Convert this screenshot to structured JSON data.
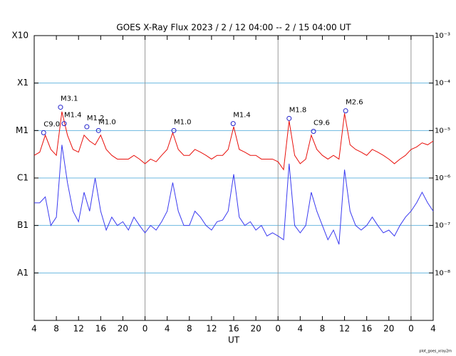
{
  "chart_data": {
    "type": "line",
    "title": "GOES X-Ray Flux   2023 /  2 / 12   04:00 --  2 / 15   04:00   UT",
    "xlabel": "UT",
    "footer": "plot_goes_xray2m",
    "log_y": true,
    "grid": true,
    "grid_color": "#6bb8e0",
    "day_line_color": "#999999",
    "day_boundaries": [
      20,
      44,
      68
    ],
    "xlim": [
      0,
      72
    ],
    "xticks": [
      {
        "value": 0,
        "label": "4"
      },
      {
        "value": 4,
        "label": "8"
      },
      {
        "value": 8,
        "label": "12"
      },
      {
        "value": 12,
        "label": "16"
      },
      {
        "value": 16,
        "label": "20"
      },
      {
        "value": 20,
        "label": "0"
      },
      {
        "value": 24,
        "label": "4"
      },
      {
        "value": 28,
        "label": "8"
      },
      {
        "value": 32,
        "label": "12"
      },
      {
        "value": 36,
        "label": "16"
      },
      {
        "value": 40,
        "label": "20"
      },
      {
        "value": 44,
        "label": "0"
      },
      {
        "value": 48,
        "label": "4"
      },
      {
        "value": 52,
        "label": "8"
      },
      {
        "value": 56,
        "label": "12"
      },
      {
        "value": 60,
        "label": "16"
      },
      {
        "value": 64,
        "label": "20"
      },
      {
        "value": 68,
        "label": "0"
      },
      {
        "value": 72,
        "label": "4"
      }
    ],
    "ylim": [
      1e-09,
      0.001
    ],
    "yticks": [
      {
        "value": 0.001,
        "label": "X10"
      },
      {
        "value": 0.0001,
        "label": "X1"
      },
      {
        "value": 1e-05,
        "label": "M1"
      },
      {
        "value": 1e-06,
        "label": "C1"
      },
      {
        "value": 1e-07,
        "label": "B1"
      },
      {
        "value": 1e-08,
        "label": "A1"
      }
    ],
    "y2lim": [
      1e-09,
      0.001
    ],
    "y2ticks": [
      {
        "value": 0.001,
        "label": "10⁻³"
      },
      {
        "value": 0.0001,
        "label": "10⁻⁴"
      },
      {
        "value": 1e-05,
        "label": "10⁻⁵"
      },
      {
        "value": 1e-06,
        "label": "10⁻⁶"
      },
      {
        "value": 1e-07,
        "label": "10⁻⁷"
      },
      {
        "value": 1e-08,
        "label": "10⁻⁸"
      }
    ],
    "x": [
      0,
      1,
      2,
      3,
      4,
      5,
      6,
      7,
      8,
      9,
      10,
      11,
      12,
      13,
      14,
      15,
      16,
      17,
      18,
      19,
      20,
      21,
      22,
      23,
      24,
      25,
      26,
      27,
      28,
      29,
      30,
      31,
      32,
      33,
      34,
      35,
      36,
      37,
      38,
      39,
      40,
      41,
      42,
      43,
      44,
      45,
      46,
      47,
      48,
      49,
      50,
      51,
      52,
      53,
      54,
      55,
      56,
      57,
      58,
      59,
      60,
      61,
      62,
      63,
      64,
      65,
      66,
      67,
      68,
      69,
      70,
      71,
      72
    ],
    "series": [
      {
        "color": "#e8100b",
        "values": [
          3e-06,
          3.5e-06,
          8e-06,
          4e-06,
          3e-06,
          2.5e-05,
          8e-06,
          4e-06,
          3.5e-06,
          8e-06,
          6e-06,
          5e-06,
          8e-06,
          4e-06,
          3e-06,
          2.5e-06,
          2.5e-06,
          2.5e-06,
          3e-06,
          2.5e-06,
          2e-06,
          2.5e-06,
          2.2e-06,
          3e-06,
          4e-06,
          9e-06,
          4e-06,
          3e-06,
          3e-06,
          4e-06,
          3.5e-06,
          3e-06,
          2.5e-06,
          3e-06,
          3e-06,
          4e-06,
          1.2e-05,
          4e-06,
          3.5e-06,
          3e-06,
          3e-06,
          2.5e-06,
          2.5e-06,
          2.5e-06,
          2.2e-06,
          1.5e-06,
          1.6e-05,
          3e-06,
          2e-06,
          2.5e-06,
          8e-06,
          4e-06,
          3e-06,
          2.5e-06,
          3e-06,
          2.5e-06,
          2.3e-05,
          5e-06,
          4e-06,
          3.5e-06,
          3e-06,
          4e-06,
          3.5e-06,
          3e-06,
          2.5e-06,
          2e-06,
          2.5e-06,
          3e-06,
          4e-06,
          4.5e-06,
          5.5e-06,
          5e-06,
          6e-06
        ]
      },
      {
        "color": "#3a3af0",
        "values": [
          3e-07,
          3e-07,
          4e-07,
          1e-07,
          1.5e-07,
          5e-06,
          8e-07,
          2e-07,
          1.2e-07,
          5e-07,
          2e-07,
          1e-06,
          2e-07,
          8e-08,
          1.5e-07,
          1e-07,
          1.2e-07,
          8e-08,
          1.5e-07,
          1e-07,
          7e-08,
          1e-07,
          8e-08,
          1.2e-07,
          2e-07,
          8e-07,
          2e-07,
          1e-07,
          1e-07,
          2e-07,
          1.5e-07,
          1e-07,
          8e-08,
          1.2e-07,
          1.3e-07,
          2e-07,
          1.2e-06,
          1.5e-07,
          1e-07,
          1.2e-07,
          8e-08,
          1e-07,
          6e-08,
          7e-08,
          6e-08,
          5e-08,
          2e-06,
          1e-07,
          7e-08,
          1e-07,
          5e-07,
          2e-07,
          1e-07,
          5e-08,
          8e-08,
          4e-08,
          1.5e-06,
          2e-07,
          1e-07,
          8e-08,
          1e-07,
          1.5e-07,
          1e-07,
          7e-08,
          8e-08,
          6e-08,
          1e-07,
          1.5e-07,
          2e-07,
          3e-07,
          5e-07,
          3e-07,
          2e-07
        ]
      }
    ],
    "annotations": [
      {
        "x": 1.7,
        "value": 9e-06,
        "label": "C9.0"
      },
      {
        "x": 4.75,
        "value": 3.1e-05,
        "label": "M3.1"
      },
      {
        "x": 5.4,
        "value": 1.4e-05,
        "label": "M1.4"
      },
      {
        "x": 9.5,
        "value": 1.2e-05,
        "label": "M1.2"
      },
      {
        "x": 11.6,
        "value": 1e-05,
        "label": "M1.0"
      },
      {
        "x": 25.2,
        "value": 1e-05,
        "label": "M1.0"
      },
      {
        "x": 35.9,
        "value": 1.4e-05,
        "label": "M1.4"
      },
      {
        "x": 46,
        "value": 1.8e-05,
        "label": "M1.8"
      },
      {
        "x": 50.4,
        "value": 9.6e-06,
        "label": "C9.6"
      },
      {
        "x": 56.2,
        "value": 2.6e-05,
        "label": "M2.6"
      }
    ]
  }
}
